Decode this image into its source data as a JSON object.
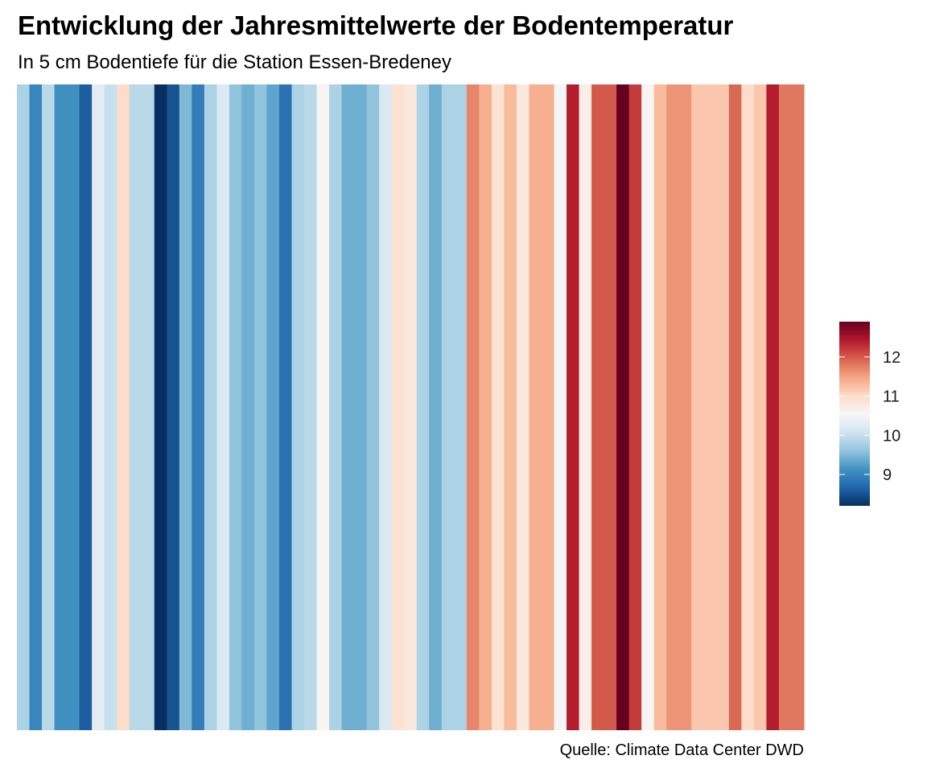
{
  "chart_data": {
    "type": "heatmap",
    "title": "Entwicklung der Jahresmittelwerte der Bodentemperatur",
    "subtitle": "In 5 cm Bodentiefe für die Station Essen-Bredeney",
    "caption": "Quelle: Climate Data Center DWD",
    "xlabel": "",
    "ylabel": "",
    "values": [
      9.8,
      9.0,
      9.9,
      9.1,
      9.1,
      8.6,
      10.3,
      10.0,
      11.0,
      9.9,
      9.9,
      8.2,
      8.5,
      9.5,
      8.9,
      9.8,
      10.2,
      9.6,
      9.4,
      9.6,
      9.3,
      8.8,
      9.8,
      9.9,
      10.6,
      9.8,
      9.4,
      9.4,
      9.6,
      10.2,
      10.9,
      10.8,
      9.8,
      9.4,
      9.8,
      9.8,
      11.7,
      11.4,
      10.9,
      11.3,
      10.8,
      11.4,
      11.4,
      10.5,
      12.4,
      10.7,
      12.0,
      12.0,
      12.9,
      12.2,
      10.6,
      11.3,
      11.6,
      11.6,
      11.2,
      11.2,
      11.2,
      11.9,
      11.0,
      11.2,
      12.4,
      11.8,
      11.8
    ],
    "color_scale": {
      "min": 8.2,
      "max": 12.9,
      "breaks": [
        9,
        10,
        11,
        12
      ],
      "colors": [
        "#053061",
        "#2166ac",
        "#4393c3",
        "#92c5de",
        "#d1e5f0",
        "#f7f7f7",
        "#fddbc7",
        "#f4a582",
        "#d6604d",
        "#b2182b",
        "#67001f"
      ]
    },
    "legend": {
      "position": "right",
      "labels": [
        "9",
        "10",
        "11",
        "12"
      ]
    }
  }
}
